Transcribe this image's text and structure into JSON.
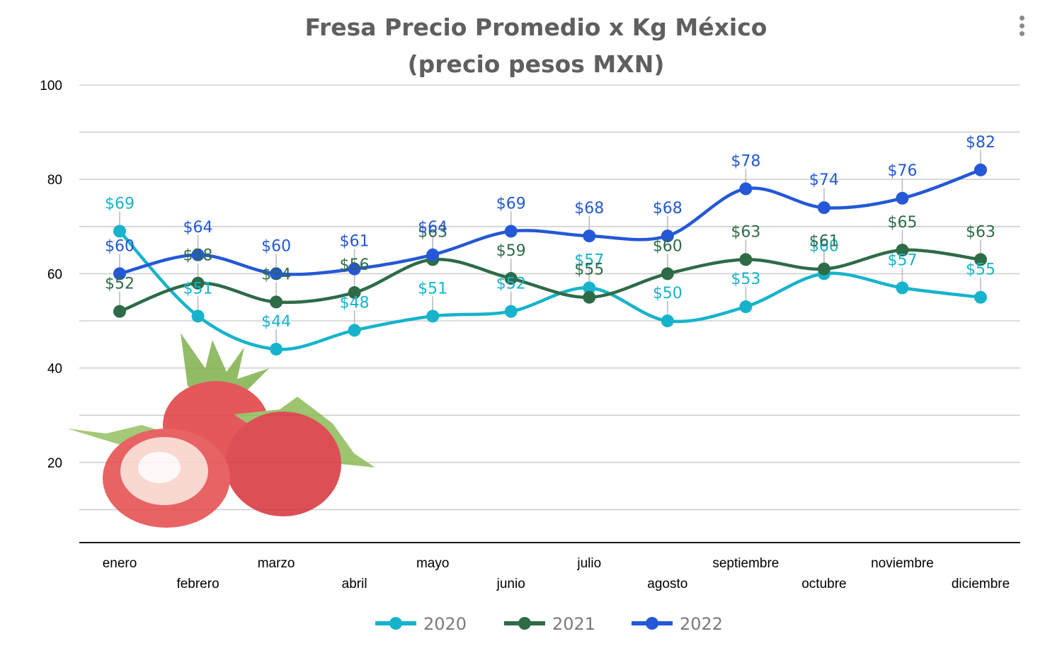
{
  "chart_data": {
    "type": "line",
    "title": [
      "Fresa Precio Promedio x Kg México",
      "(precio pesos MXN)"
    ],
    "xlabel": "",
    "ylabel": "",
    "ylim": [
      0,
      100
    ],
    "yticks": [
      20,
      40,
      60,
      80,
      100
    ],
    "grid": true,
    "legend_position": "bottom",
    "categories": [
      "enero",
      "febrero",
      "marzo",
      "abril",
      "mayo",
      "junio",
      "julio",
      "agosto",
      "septiembre",
      "octubre",
      "noviembre",
      "diciembre"
    ],
    "series": [
      {
        "name": "2020",
        "color": "#17b3cc",
        "values": [
          69,
          51,
          44,
          48,
          51,
          52,
          57,
          50,
          53,
          60,
          57,
          55
        ],
        "labels": [
          "$69",
          "$51",
          "$44",
          "$48",
          "$51",
          "$52",
          "$57",
          "$50",
          "$53",
          "$60",
          "$57",
          "$55"
        ]
      },
      {
        "name": "2021",
        "color": "#2e6b47",
        "values": [
          52,
          58,
          54,
          56,
          63,
          59,
          55,
          60,
          63,
          61,
          65,
          63
        ],
        "labels": [
          "$52",
          "$58",
          "$54",
          "$56",
          "$63",
          "$59",
          "$55",
          "$60",
          "$63",
          "$61",
          "$65",
          "$63"
        ]
      },
      {
        "name": "2022",
        "color": "#2458d6",
        "values": [
          60,
          64,
          60,
          61,
          64,
          69,
          68,
          68,
          78,
          74,
          76,
          82
        ],
        "labels": [
          "$60",
          "$64",
          "$60",
          "$61",
          "$64",
          "$69",
          "$68",
          "$68",
          "$78",
          "$74",
          "$76",
          "$82"
        ]
      }
    ]
  },
  "ui": {
    "menu_icon": "kebab-menu-icon",
    "decoration_icon": "strawberry-image"
  }
}
